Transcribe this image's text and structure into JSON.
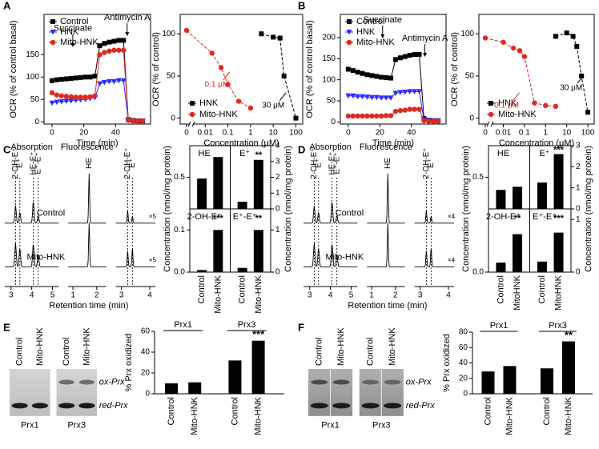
{
  "panel_labels": [
    "A",
    "B",
    "C",
    "D",
    "E",
    "F"
  ],
  "chart_data": [
    {
      "type": "line",
      "x_label": "Time (min)",
      "y_label": "OCR (% of control basal)",
      "annotations": [
        "Succinate",
        "Antimycin A"
      ],
      "xlim": [
        -5,
        62
      ],
      "ylim": [
        -5,
        240
      ],
      "xticks": [
        0,
        20,
        40
      ],
      "yticks": [
        0,
        50,
        100,
        150
      ],
      "legend": "upper left",
      "series": [
        {
          "name": "Control",
          "color": "#000000",
          "marker": "square",
          "x": [
            0,
            3,
            6,
            9,
            12,
            15,
            18,
            21,
            24,
            27,
            30,
            33,
            36,
            39,
            42,
            45,
            48,
            51,
            54,
            57
          ],
          "values": [
            92,
            94,
            95,
            96,
            97,
            98,
            99,
            100,
            100,
            102,
            170,
            175,
            178,
            180,
            182,
            182,
            5,
            3,
            2,
            2
          ]
        },
        {
          "name": "HNK",
          "color": "#2b2bff",
          "marker": "triangle",
          "x": [
            0,
            3,
            6,
            9,
            12,
            15,
            18,
            21,
            24,
            27,
            30,
            33,
            36,
            39,
            42,
            45,
            48,
            51,
            54,
            57
          ],
          "values": [
            42,
            44,
            45,
            46,
            47,
            48,
            49,
            50,
            52,
            54,
            85,
            88,
            90,
            90,
            92,
            92,
            3,
            2,
            2,
            2
          ]
        },
        {
          "name": "Mito-HNK",
          "color": "#e0281e",
          "marker": "circle",
          "x": [
            0,
            3,
            6,
            9,
            12,
            15,
            18,
            21,
            24,
            27,
            30,
            33,
            36,
            39,
            42,
            45,
            48,
            51,
            54,
            57
          ],
          "values": [
            65,
            60,
            58,
            57,
            56,
            55,
            55,
            55,
            56,
            58,
            150,
            155,
            158,
            160,
            160,
            160,
            4,
            2,
            2,
            2
          ]
        }
      ]
    },
    {
      "type": "dose",
      "x_label": "Concentration (μM)",
      "y_label": "OCR (% of control)",
      "log_x": true,
      "x_break": true,
      "xlim": [
        0.004,
        200
      ],
      "ylim": [
        -7,
        123
      ],
      "xticks": [
        0,
        0.01,
        0.1,
        1,
        10,
        100
      ],
      "yticks": [
        0,
        50,
        100
      ],
      "legend": "lower left",
      "annotations": [
        {
          "text": "0.1 μM",
          "color": "#e0281e"
        },
        {
          "text": "30 μM",
          "color": "#000000"
        }
      ],
      "series": [
        {
          "name": "HNK",
          "color": "#000000",
          "marker": "square",
          "x": [
            3,
            10,
            20,
            30,
            100
          ],
          "values": [
            100,
            96,
            95,
            50,
            0
          ]
        },
        {
          "name": "Mito-HNK",
          "color": "#e0281e",
          "marker": "circle",
          "x": [
            0,
            0.02,
            0.05,
            0.1,
            0.3,
            1
          ],
          "values": [
            104,
            77,
            60,
            40,
            20,
            12
          ]
        }
      ]
    },
    {
      "type": "line",
      "x_label": "Time (min)",
      "y_label": "OCR (% of control basal)",
      "annotations": [
        "Succinate",
        "Antimycin A"
      ],
      "xlim": [
        -5,
        62
      ],
      "ylim": [
        -5,
        255
      ],
      "xticks": [
        0,
        20,
        40
      ],
      "yticks": [
        0,
        50,
        100,
        150,
        200
      ],
      "legend": "upper left",
      "series": [
        {
          "name": "Control",
          "color": "#000000",
          "marker": "square",
          "x": [
            0,
            3,
            6,
            9,
            12,
            15,
            18,
            21,
            24,
            27,
            30,
            33,
            36,
            39,
            42,
            45,
            48,
            51,
            54,
            57
          ],
          "values": [
            125,
            122,
            118,
            115,
            112,
            110,
            108,
            106,
            105,
            104,
            148,
            152,
            155,
            158,
            160,
            160,
            8,
            4,
            3,
            3
          ]
        },
        {
          "name": "HNK",
          "color": "#2b2bff",
          "marker": "triangle",
          "x": [
            0,
            3,
            6,
            9,
            12,
            15,
            18,
            21,
            24,
            27,
            30,
            33,
            36,
            39,
            42,
            45,
            48,
            51,
            54,
            57
          ],
          "values": [
            62,
            62,
            60,
            60,
            59,
            58,
            58,
            57,
            57,
            57,
            68,
            70,
            71,
            72,
            72,
            72,
            5,
            3,
            3,
            3
          ]
        },
        {
          "name": "Mito-HNK",
          "color": "#e0281e",
          "marker": "circle",
          "x": [
            0,
            3,
            6,
            9,
            12,
            15,
            18,
            21,
            24,
            27,
            30,
            33,
            36,
            39,
            42,
            45,
            48,
            51,
            54,
            57
          ],
          "values": [
            14,
            14,
            14,
            14,
            14,
            14,
            14,
            14,
            15,
            15,
            25,
            27,
            28,
            30,
            30,
            30,
            3,
            2,
            2,
            2
          ]
        }
      ]
    },
    {
      "type": "dose",
      "x_label": "Concentration (μM)",
      "y_label": "OCR (% of control)",
      "log_x": true,
      "x_break": true,
      "xlim": [
        0.004,
        200
      ],
      "ylim": [
        -7,
        123
      ],
      "xticks": [
        0,
        0.01,
        0.1,
        1,
        10,
        100
      ],
      "yticks": [
        0,
        50,
        100
      ],
      "legend": "lower left",
      "annotations": [
        {
          "text": "0.1 μM",
          "color": "#e0281e"
        },
        {
          "text": "30 μM",
          "color": "#000000"
        }
      ],
      "series": [
        {
          "name": "HNK",
          "color": "#000000",
          "marker": "square",
          "x": [
            3,
            10,
            20,
            30,
            50,
            100
          ],
          "values": [
            97,
            101,
            97,
            85,
            50,
            7
          ]
        },
        {
          "name": "Mito-HNK",
          "color": "#e0281e",
          "marker": "circle",
          "x": [
            0,
            0.01,
            0.03,
            0.06,
            0.1,
            0.3,
            1,
            3
          ],
          "values": [
            95,
            90,
            83,
            80,
            73,
            18,
            15,
            14
          ]
        }
      ]
    },
    {
      "type": "chromatogram",
      "titles": [
        "Absorption",
        "Fluorescence"
      ],
      "peak_labels": [
        "2-OH-E⁺",
        "E⁺",
        "HE-E⁺",
        "E⁺-E⁺",
        "HE",
        "2-OH-E⁺",
        "E⁺"
      ],
      "traces": [
        "Control",
        "Mito-HNK"
      ],
      "scale": "×5",
      "x_label": "Retention time (min)",
      "segments": [
        {
          "xlim": [
            2.7,
            5.3
          ],
          "xticks": [
            3,
            4,
            5
          ]
        },
        {
          "xlim": [
            0.8,
            2.4
          ],
          "xticks": [
            1,
            2
          ]
        },
        {
          "xlim": [
            2.8,
            4.2
          ],
          "xticks": [
            3,
            4
          ]
        }
      ]
    },
    {
      "type": "bar_grid",
      "y_label": "Concentration (nmol/mg protein)",
      "categories": [
        "Control",
        "Mito-HNK"
      ],
      "color": "#000000",
      "panels": [
        {
          "title": "HE",
          "values": [
            0.48,
            0.82
          ],
          "ylim": [
            0,
            1
          ],
          "yticks": [
            0.5
          ],
          "axis": "left"
        },
        {
          "title": "E⁺",
          "values": [
            0.45,
            3.1
          ],
          "ylim": [
            0,
            4
          ],
          "yticks": [
            0,
            1,
            2,
            3,
            4
          ],
          "axis": "right",
          "significance": "**"
        },
        {
          "title": "2-OH-E⁺",
          "values": [
            0.005,
            0.1
          ],
          "ylim": [
            0,
            0.15
          ],
          "yticks": [
            {
              "value": 0,
              "label": "0.0"
            },
            0.1
          ],
          "axis": "left",
          "significance": "***"
        },
        {
          "title": "E⁺-E⁺",
          "values": [
            0.1,
            1.0
          ],
          "ylim": [
            0,
            1.5
          ],
          "yticks": [
            0,
            1
          ],
          "axis": "right",
          "significance": "**"
        }
      ]
    },
    {
      "type": "chromatogram",
      "titles": [
        "Absorption",
        "Fluorescence"
      ],
      "peak_labels": [
        "2-OH-E⁺",
        "E⁺",
        "HE-E⁺",
        "E⁺-E⁺",
        "HE",
        "2-OH-E⁺",
        "E⁺"
      ],
      "traces": [
        "Control",
        "Mito-HNK"
      ],
      "scale": "×4",
      "x_label": "Retention time (min)",
      "segments": [
        {
          "xlim": [
            2.7,
            5.3
          ],
          "xticks": [
            3,
            4,
            5
          ]
        },
        {
          "xlim": [
            0.8,
            2.4
          ],
          "xticks": [
            1,
            2
          ]
        },
        {
          "xlim": [
            2.8,
            4.2
          ],
          "xticks": [
            3,
            4
          ]
        }
      ]
    },
    {
      "type": "bar_grid",
      "y_label": "Concentration (nmol/mg protein)",
      "categories": [
        "Control",
        "MitoHNK"
      ],
      "color": "#000000",
      "panels": [
        {
          "title": "HE",
          "values": [
            0.3,
            0.35
          ],
          "ylim": [
            0,
            1
          ],
          "yticks": [
            0.5
          ],
          "axis": "left"
        },
        {
          "title": "E⁺",
          "values": [
            1.25,
            2.6
          ],
          "ylim": [
            0,
            3
          ],
          "yticks": [
            0,
            1,
            2,
            3
          ],
          "axis": "right",
          "significance": "***"
        },
        {
          "title": "2-OH-E⁺",
          "values": [
            0.015,
            0.06
          ],
          "ylim": [
            0,
            0.1
          ],
          "yticks": [
            {
              "value": 0,
              "label": "0.0"
            }
          ],
          "axis": "left",
          "significance": "**"
        },
        {
          "title": "E⁺-E⁺",
          "values": [
            0.2,
            0.75
          ],
          "ylim": [
            0,
            1.2
          ],
          "yticks": [
            0,
            1
          ],
          "axis": "right",
          "significance": "***"
        }
      ]
    },
    {
      "type": "blot",
      "lanes": [
        "Control",
        "Mito-HNK"
      ],
      "blots": [
        "Prx1",
        "Prx3"
      ],
      "bands": [
        "ox-Prx",
        "red-Prx"
      ]
    },
    {
      "type": "bargroup",
      "y_label": "% Prx oxidized",
      "groups": [
        "Prx1",
        "Prx3"
      ],
      "categories": [
        "Control",
        "Mito-HNK",
        "Control",
        "Mito-HNK"
      ],
      "values": [
        10,
        11,
        32,
        51
      ],
      "color": "#000000",
      "ylim": [
        0,
        60
      ],
      "yticks": [
        0,
        20,
        40,
        60
      ],
      "significance": "***"
    },
    {
      "type": "blot",
      "lanes": [
        "Control",
        "Mito-HNK"
      ],
      "blots": [
        "Prx1",
        "Prx3"
      ],
      "bands": [
        "ox-Prx",
        "red-Prx"
      ]
    },
    {
      "type": "bargroup",
      "y_label": "% Prx oxidized",
      "groups": [
        "Prx1",
        "Prx3"
      ],
      "categories": [
        "Control",
        "Mito-HNK",
        "Control",
        "Mito-HNK"
      ],
      "values": [
        29,
        36,
        33,
        68
      ],
      "color": "#000000",
      "ylim": [
        0,
        80
      ],
      "yticks": [
        0,
        20,
        40,
        60,
        80
      ],
      "significance": "**"
    }
  ]
}
